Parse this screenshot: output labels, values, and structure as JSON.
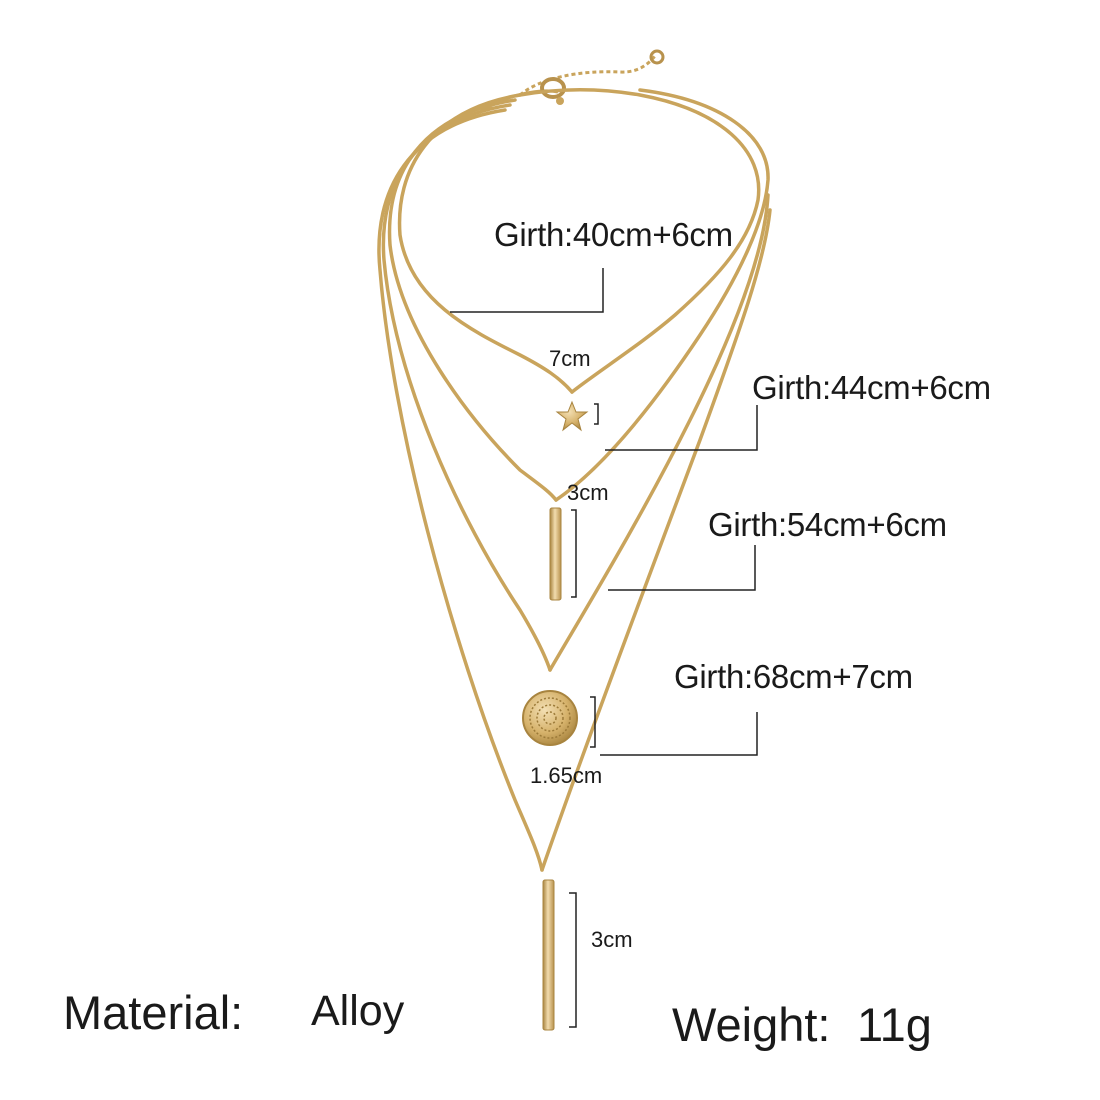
{
  "product": {
    "colors": {
      "gold": "#c9a45c",
      "gold_dark": "#a8843f",
      "gold_light": "#ecd3a0",
      "line": "#222222",
      "background": "#ffffff"
    },
    "girth_labels": [
      {
        "text": "Girth:40cm+6cm"
      },
      {
        "text": "Girth:44cm+6cm"
      },
      {
        "text": "Girth:54cm+6cm"
      },
      {
        "text": "Girth:68cm+7cm"
      }
    ],
    "pendant_sizes": {
      "star": "7cm",
      "short_bar": "3cm",
      "coin": "1.65cm",
      "long_bar": "3cm"
    },
    "specs": {
      "material_label": "Material:",
      "material_value": "Alloy",
      "weight_label": "Weight:",
      "weight_value": "11g"
    }
  }
}
